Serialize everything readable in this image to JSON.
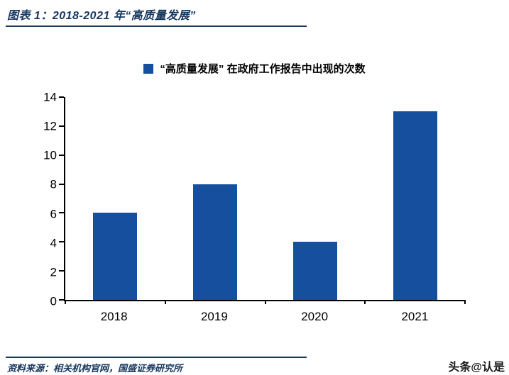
{
  "figure": {
    "title": "图表 1：2018-2021 年“高质量发展”",
    "legend_label": "“高质量发展” 在政府工作报告中出现的次数",
    "source": "资料来源：相关机构官网，国盛证券研究所",
    "watermark": "头条@认是"
  },
  "colors": {
    "bar": "#164F9E",
    "accent": "#17375E",
    "axis": "#000000"
  },
  "chart_data": {
    "type": "bar",
    "categories": [
      "2018",
      "2019",
      "2020",
      "2021"
    ],
    "values": [
      6,
      8,
      4,
      13
    ],
    "title": "图表 1：2018-2021 年“高质量发展”",
    "legend": [
      "“高质量发展” 在政府工作报告中出现的次数"
    ],
    "xlabel": "",
    "ylabel": "",
    "ylim": [
      0,
      14
    ],
    "yticks": [
      0,
      2,
      4,
      6,
      8,
      10,
      12,
      14
    ],
    "grid": false,
    "legend_position": "top",
    "bar_color": "#164F9E"
  }
}
